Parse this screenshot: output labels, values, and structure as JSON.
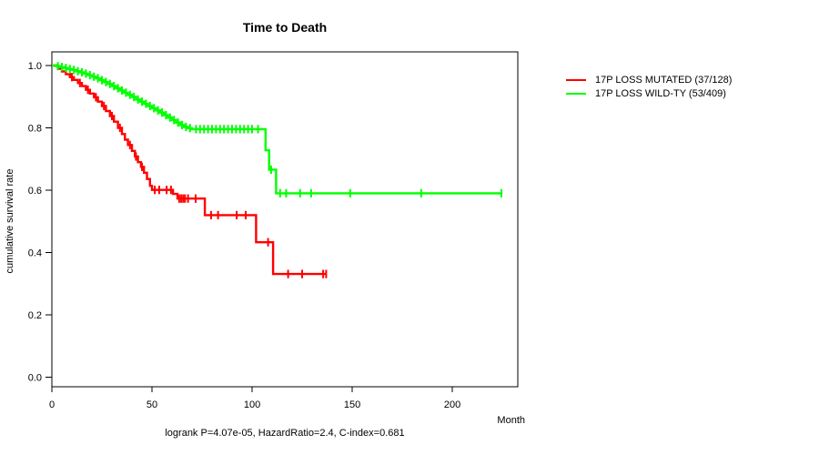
{
  "title": "Time to Death",
  "axes": {
    "x_label": "Month",
    "y_label": "cumulative survival rate",
    "x_ticks": [
      0,
      50,
      100,
      150,
      200
    ],
    "y_ticks": [
      {
        "value": 0.0,
        "label": "0.0"
      },
      {
        "value": 0.2,
        "label": "0.2"
      },
      {
        "value": 0.4,
        "label": "0.4"
      },
      {
        "value": 0.6,
        "label": "0.6"
      },
      {
        "value": 0.8,
        "label": "0.8"
      },
      {
        "value": 1.0,
        "label": "1.0"
      }
    ]
  },
  "legend": [
    {
      "label": "17P LOSS MUTATED (37/128)",
      "color": "#ff0000"
    },
    {
      "label": "17P LOSS WILD-TY (53/409)",
      "color": "#00ff00"
    }
  ],
  "footer": "logrank P=4.07e-05, HazardRatio=2.4, C-index=0.681",
  "chart_data": {
    "type": "line",
    "subtype": "kaplan-meier-step",
    "title": "Time to Death",
    "xlabel": "Month",
    "ylabel": "cumulative survival rate",
    "xlim": [
      0,
      232.7
    ],
    "ylim": [
      0,
      1.0
    ],
    "grid": false,
    "legend_position": "right",
    "stats": {
      "logrank_p": "4.07e-05",
      "hazard_ratio": 2.4,
      "c_index": 0.681
    },
    "series": [
      {
        "name": "17P LOSS MUTATED (37/128)",
        "color": "#ff0000",
        "events_total": "37/128",
        "steps": [
          [
            0,
            1.0
          ],
          [
            3,
            0.99
          ],
          [
            5,
            0.981
          ],
          [
            7,
            0.972
          ],
          [
            9,
            0.963
          ],
          [
            11,
            0.954
          ],
          [
            13,
            0.944
          ],
          [
            15,
            0.934
          ],
          [
            17,
            0.922
          ],
          [
            19,
            0.91
          ],
          [
            21,
            0.898
          ],
          [
            23,
            0.884
          ],
          [
            25,
            0.87
          ],
          [
            27,
            0.854
          ],
          [
            29,
            0.838
          ],
          [
            31,
            0.82
          ],
          [
            33,
            0.8
          ],
          [
            35,
            0.78
          ],
          [
            36.5,
            0.762
          ],
          [
            38,
            0.745
          ],
          [
            40,
            0.726
          ],
          [
            41.5,
            0.708
          ],
          [
            43,
            0.69
          ],
          [
            44.5,
            0.675
          ],
          [
            46,
            0.656
          ],
          [
            47.5,
            0.636
          ],
          [
            49,
            0.614
          ],
          [
            50,
            0.601
          ],
          [
            60.5,
            0.588
          ],
          [
            62.7,
            0.573
          ],
          [
            76.4,
            0.52
          ],
          [
            102,
            0.433
          ],
          [
            110.5,
            0.331
          ]
        ],
        "end_t": 137,
        "censors": [
          10,
          14,
          18,
          22,
          26,
          30,
          34,
          39,
          42,
          45,
          51.4,
          53.6,
          57.3,
          59.5,
          63.6,
          64.6,
          65.6,
          66.5,
          68,
          71.8,
          79.5,
          83,
          92.3,
          96.8,
          108,
          118,
          125,
          135.5,
          137
        ]
      },
      {
        "name": "17P LOSS WILD-TY (53/409)",
        "color": "#00ff00",
        "events_total": "53/409",
        "steps": [
          [
            0,
            1.0
          ],
          [
            2,
            0.998
          ],
          [
            4,
            0.995
          ],
          [
            6,
            0.992
          ],
          [
            8,
            0.989
          ],
          [
            10,
            0.986
          ],
          [
            12,
            0.982
          ],
          [
            14,
            0.978
          ],
          [
            16,
            0.974
          ],
          [
            18,
            0.969
          ],
          [
            20,
            0.964
          ],
          [
            22,
            0.959
          ],
          [
            24,
            0.953
          ],
          [
            26,
            0.947
          ],
          [
            28,
            0.941
          ],
          [
            30,
            0.934
          ],
          [
            32,
            0.927
          ],
          [
            34,
            0.92
          ],
          [
            36,
            0.913
          ],
          [
            38,
            0.906
          ],
          [
            40,
            0.899
          ],
          [
            42,
            0.891
          ],
          [
            44,
            0.884
          ],
          [
            46,
            0.877
          ],
          [
            48,
            0.87
          ],
          [
            50,
            0.863
          ],
          [
            52,
            0.856
          ],
          [
            54,
            0.849
          ],
          [
            56,
            0.841
          ],
          [
            58,
            0.833
          ],
          [
            60,
            0.825
          ],
          [
            62,
            0.817
          ],
          [
            64,
            0.809
          ],
          [
            66,
            0.803
          ],
          [
            68,
            0.799
          ],
          [
            70,
            0.796
          ],
          [
            106.7,
            0.728
          ],
          [
            108.5,
            0.666
          ],
          [
            112,
            0.59
          ]
        ],
        "end_t": 225,
        "censors": [
          3,
          5,
          7,
          9,
          11,
          13,
          15,
          17,
          19,
          21,
          23,
          25,
          27,
          29,
          31,
          33,
          35,
          37,
          39,
          41,
          43,
          45,
          47,
          49,
          51,
          53,
          55,
          57,
          59,
          61,
          63,
          65,
          67,
          69,
          72,
          74,
          76,
          78,
          80,
          82,
          84,
          86,
          88,
          90,
          92,
          94,
          96,
          98,
          100,
          103,
          109.5,
          114,
          117,
          124,
          129.5,
          149,
          184.5,
          224.5
        ]
      }
    ]
  }
}
